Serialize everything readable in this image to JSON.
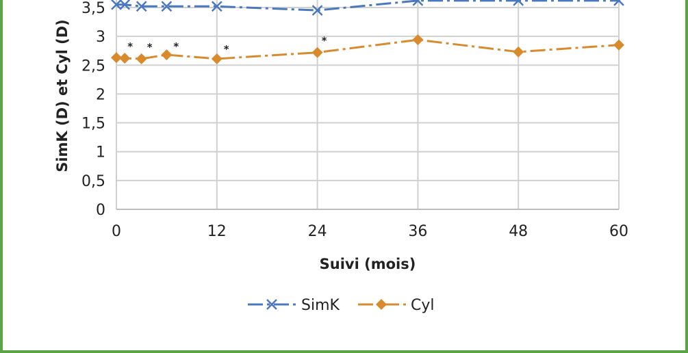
{
  "chart_data": {
    "type": "line",
    "title": "",
    "xlabel": "Suivi (mois)",
    "ylabel": "SimK (D) et Cyl (D)",
    "xlim": [
      0,
      60
    ],
    "ylim": [
      0,
      3.6
    ],
    "x_ticks": [
      "0",
      "12",
      "24",
      "36",
      "48",
      "60"
    ],
    "y_ticks": [
      "0",
      "0,5",
      "1",
      "1,5",
      "2",
      "2,5",
      "3",
      "3,5"
    ],
    "grid": true,
    "legend_position": "bottom",
    "series": [
      {
        "name": "SimK",
        "color": "#4a78bf",
        "marker": "x",
        "line_style": "dash-dot",
        "x": [
          0,
          1,
          3,
          6,
          12,
          24,
          36,
          48,
          60
        ],
        "y": [
          3.55,
          3.55,
          3.52,
          3.52,
          3.52,
          3.45,
          3.62,
          3.62,
          3.62
        ]
      },
      {
        "name": "Cyl",
        "color": "#d98a2c",
        "marker": "diamond",
        "line_style": "dash-dot",
        "x": [
          0,
          1,
          3,
          6,
          12,
          24,
          36,
          48,
          60
        ],
        "y": [
          2.63,
          2.62,
          2.61,
          2.68,
          2.61,
          2.72,
          2.94,
          2.73,
          2.85
        ]
      }
    ],
    "annotations": [
      {
        "text": "*",
        "x": 1,
        "series": "Cyl"
      },
      {
        "text": "*",
        "x": 3,
        "series": "Cyl"
      },
      {
        "text": "*",
        "x": 6,
        "series": "Cyl"
      },
      {
        "text": "*",
        "x": 12,
        "series": "Cyl"
      },
      {
        "text": "*",
        "x": 24,
        "series": "Cyl"
      }
    ]
  }
}
